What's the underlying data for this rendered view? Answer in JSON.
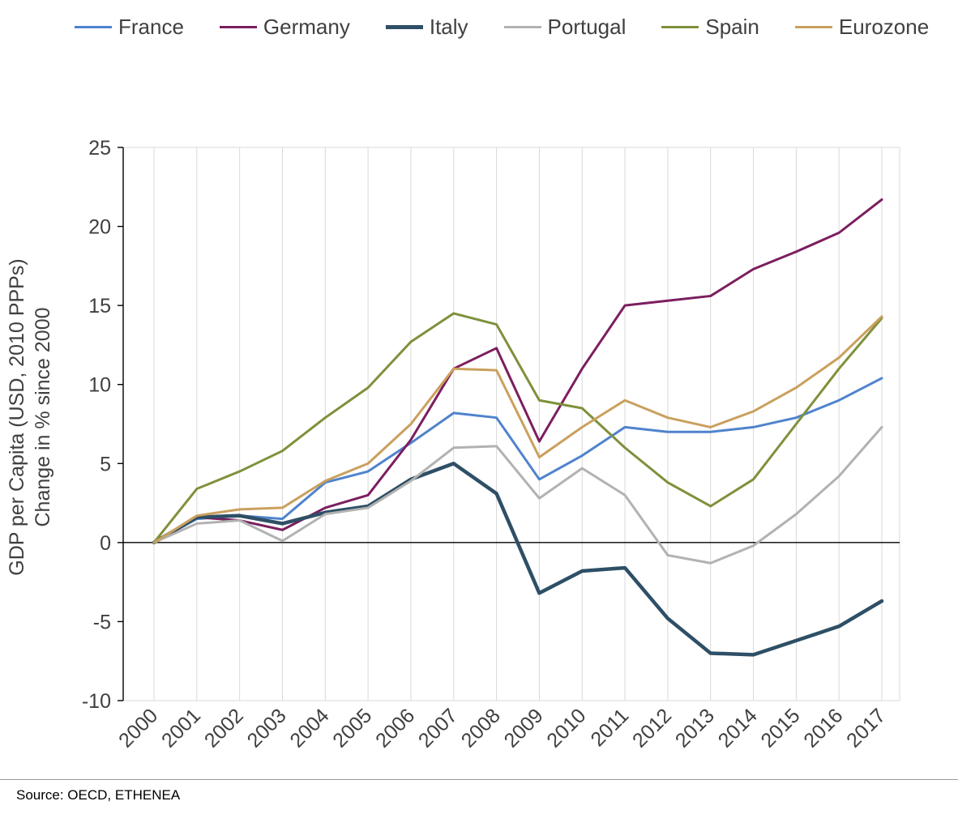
{
  "y_axis": {
    "line1": "GDP per Capita (USD, 2010 PPPs)",
    "line2": "Change in % since 2000"
  },
  "footer": {
    "source_text": "Source: OECD, ETHENEA"
  },
  "chart_data": {
    "type": "line",
    "title": "",
    "xlabel": "",
    "ylabel": "GDP per Capita (USD, 2010 PPPs) Change in % since 2000",
    "ylim": [
      -10,
      25
    ],
    "ytick_step": 5,
    "grid": "vertical-only",
    "zero_line": true,
    "legend_position": "top",
    "x": [
      2000,
      2001,
      2002,
      2003,
      2004,
      2005,
      2006,
      2007,
      2008,
      2009,
      2010,
      2011,
      2012,
      2013,
      2014,
      2015,
      2016,
      2017
    ],
    "series": [
      {
        "name": "France",
        "color": "#4f83cc",
        "width": 3,
        "values": [
          0,
          1.5,
          1.7,
          1.5,
          3.8,
          4.5,
          6.3,
          8.2,
          7.9,
          4.0,
          5.5,
          7.3,
          7.0,
          7.0,
          7.3,
          7.9,
          9.0,
          10.4
        ]
      },
      {
        "name": "Germany",
        "color": "#7c1e5f",
        "width": 3,
        "values": [
          0,
          1.6,
          1.4,
          0.8,
          2.2,
          3.0,
          6.5,
          11.0,
          12.3,
          6.4,
          11.0,
          15.0,
          15.3,
          15.6,
          17.3,
          18.4,
          19.6,
          21.7
        ]
      },
      {
        "name": "Italy",
        "color": "#2e4f66",
        "width": 4.5,
        "values": [
          0,
          1.6,
          1.7,
          1.2,
          1.9,
          2.3,
          4.0,
          5.0,
          3.1,
          -3.2,
          -1.8,
          -1.6,
          -4.8,
          -7.0,
          -7.1,
          -6.2,
          -5.3,
          -3.7
        ]
      },
      {
        "name": "Portugal",
        "color": "#b2b2b2",
        "width": 3,
        "values": [
          0,
          1.2,
          1.4,
          0.1,
          1.8,
          2.2,
          3.9,
          6.0,
          6.1,
          2.8,
          4.7,
          3.0,
          -0.8,
          -1.3,
          -0.2,
          1.8,
          4.2,
          7.3
        ]
      },
      {
        "name": "Spain",
        "color": "#7e913b",
        "width": 3,
        "values": [
          0,
          3.4,
          4.5,
          5.8,
          7.9,
          9.8,
          12.7,
          14.5,
          13.8,
          9.0,
          8.5,
          6.0,
          3.8,
          2.3,
          4.0,
          7.5,
          11.0,
          14.2
        ]
      },
      {
        "name": "Eurozone",
        "color": "#caa05e",
        "width": 3,
        "values": [
          0,
          1.7,
          2.1,
          2.2,
          3.9,
          5.0,
          7.5,
          11.0,
          10.9,
          5.4,
          7.3,
          9.0,
          7.9,
          7.3,
          8.3,
          9.8,
          11.7,
          14.3
        ]
      }
    ]
  }
}
